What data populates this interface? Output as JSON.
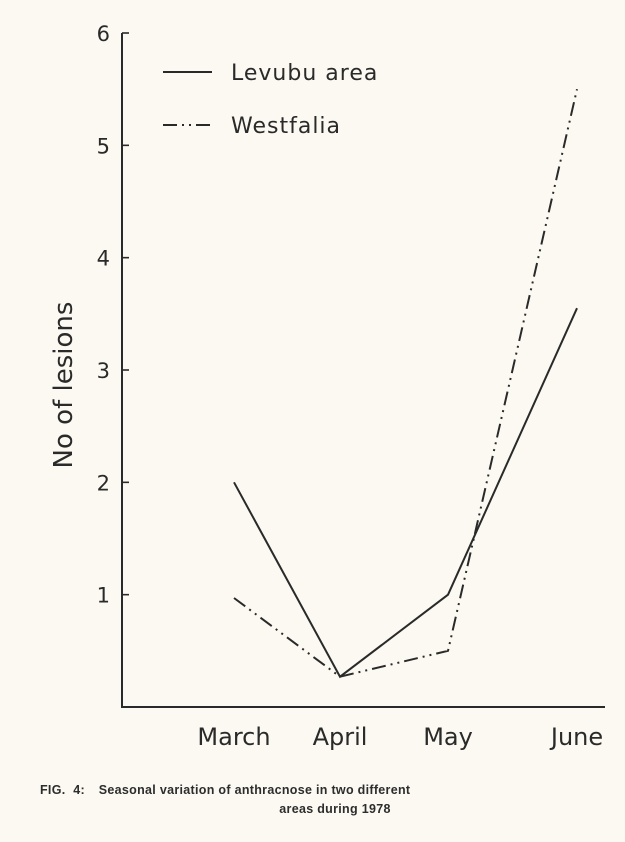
{
  "chart_data": {
    "type": "line",
    "categories": [
      "March",
      "April",
      "May",
      "June"
    ],
    "series": [
      {
        "name": "Levubu area",
        "values": [
          2.0,
          0.27,
          1.0,
          3.55
        ],
        "dash": "solid"
      },
      {
        "name": "Westfalia",
        "values": [
          0.97,
          0.27,
          0.5,
          5.5
        ],
        "dash": "dash-dot-dot"
      }
    ],
    "ylabel": "No of lesions",
    "xlabel": "",
    "ylim": [
      0,
      6
    ],
    "yticks": [
      1,
      2,
      3,
      4,
      5,
      6
    ],
    "grid": false,
    "legend_position": "top-left",
    "colors": {
      "ink": "#2a2a2a",
      "paper": "#fbf9f1"
    }
  },
  "caption": {
    "label": "FIG. 4:",
    "line1": "Seasonal variation of anthracnose in two different",
    "line2": "areas during 1978"
  }
}
